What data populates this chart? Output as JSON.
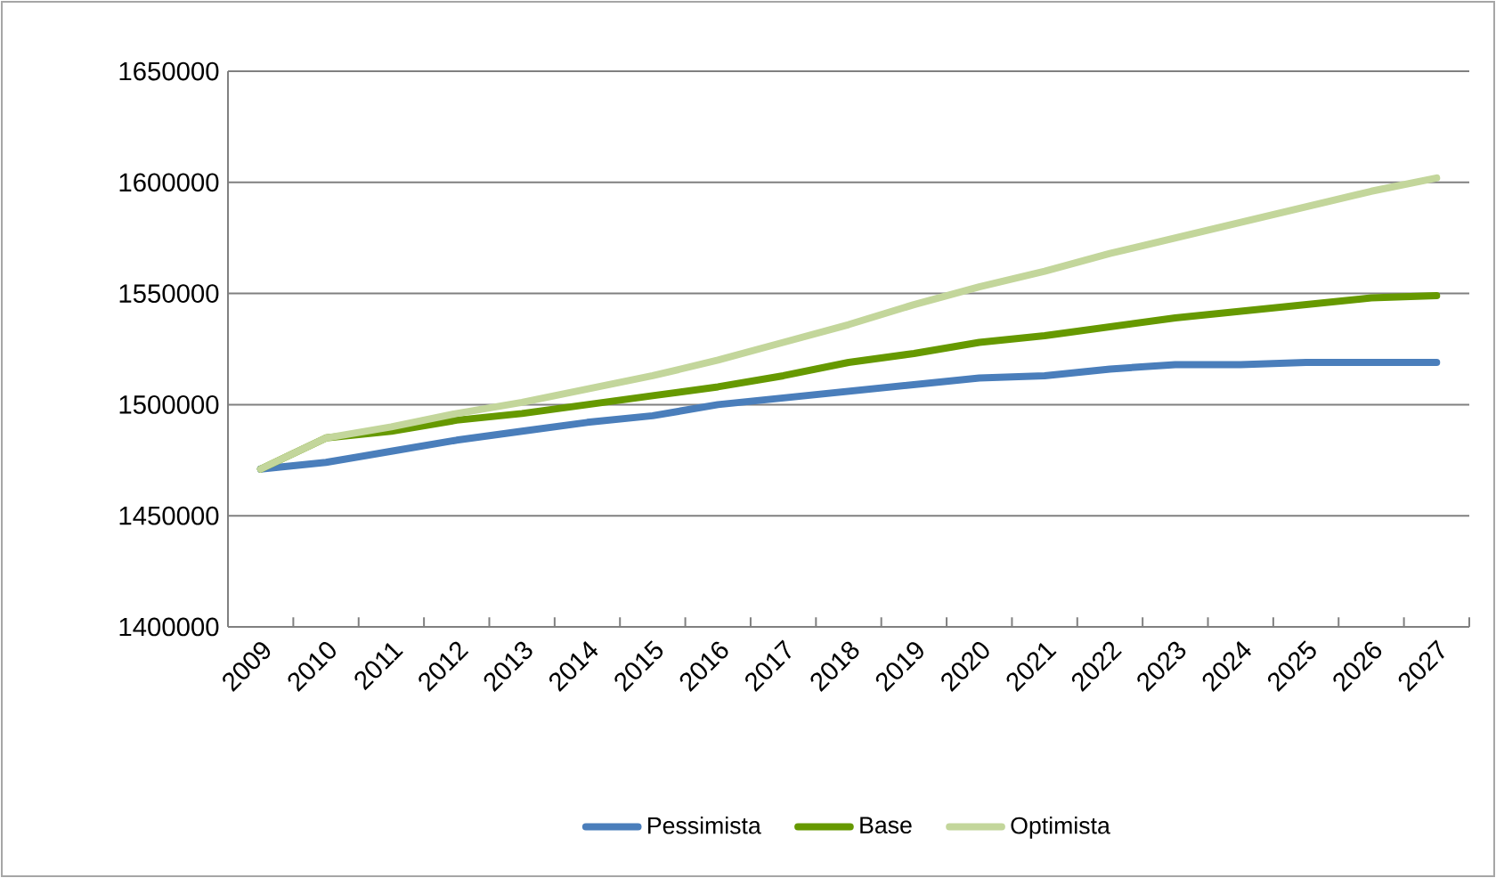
{
  "chart_data": {
    "type": "line",
    "categories": [
      "2009",
      "2010",
      "2011",
      "2012",
      "2013",
      "2014",
      "2015",
      "2016",
      "2017",
      "2018",
      "2019",
      "2020",
      "2021",
      "2022",
      "2023",
      "2024",
      "2025",
      "2026",
      "2027"
    ],
    "series": [
      {
        "name": "Pessimista",
        "color": "#4a7ebb",
        "values": [
          1471000,
          1474000,
          1479000,
          1484000,
          1488000,
          1492000,
          1495000,
          1500000,
          1503000,
          1506000,
          1509000,
          1512000,
          1513000,
          1516000,
          1518000,
          1518000,
          1519000,
          1519000,
          1519000
        ]
      },
      {
        "name": "Base",
        "color": "#669900",
        "values": [
          1471000,
          1485000,
          1488000,
          1493000,
          1496000,
          1500000,
          1504000,
          1508000,
          1513000,
          1519000,
          1523000,
          1528000,
          1531000,
          1535000,
          1539000,
          1542000,
          1545000,
          1548000,
          1549000
        ]
      },
      {
        "name": "Optimista",
        "color": "#c3d69b",
        "values": [
          1471000,
          1485000,
          1490000,
          1496000,
          1501000,
          1507000,
          1513000,
          1520000,
          1528000,
          1536000,
          1545000,
          1553000,
          1560000,
          1568000,
          1575000,
          1582000,
          1589000,
          1596000,
          1602000
        ]
      }
    ],
    "ylim": [
      1400000,
      1650000
    ],
    "yticks": [
      1400000,
      1450000,
      1500000,
      1550000,
      1600000,
      1650000
    ],
    "grid": "y",
    "legend": "bottom",
    "line_style": "solid"
  }
}
